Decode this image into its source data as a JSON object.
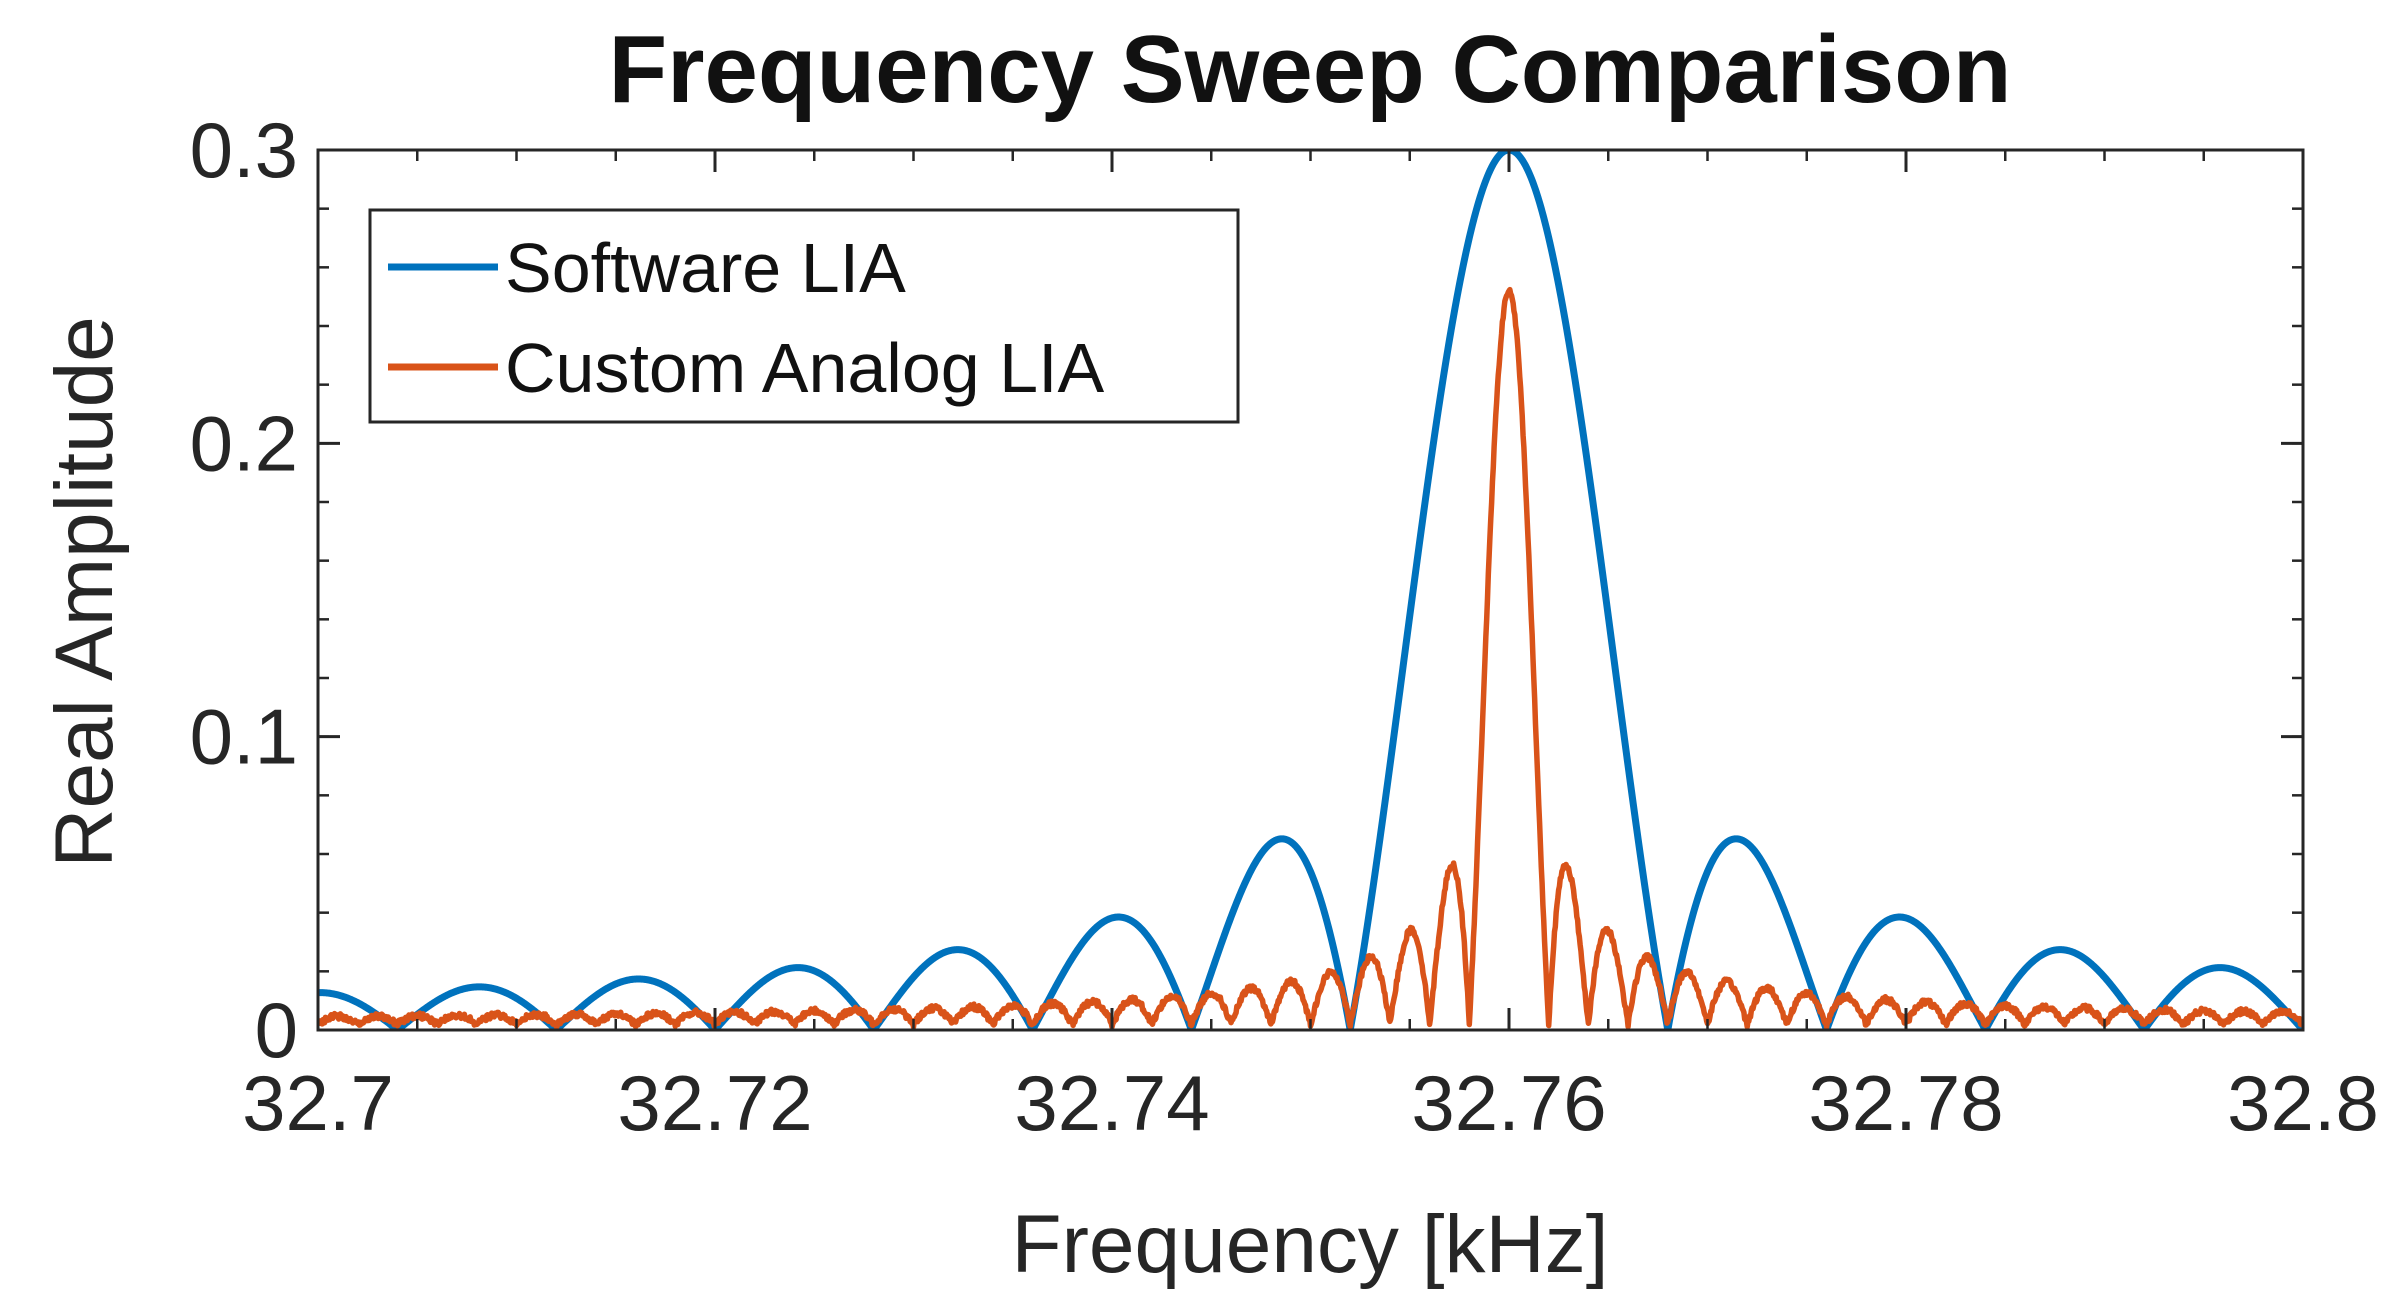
{
  "chart_data": {
    "type": "line",
    "title": "Frequency Sweep Comparison",
    "xlabel": "Frequency [kHz]",
    "ylabel": "Real Amplitude",
    "xlim": [
      32.7,
      32.8
    ],
    "ylim": [
      0,
      0.3
    ],
    "x_ticks": [
      32.7,
      32.72,
      32.74,
      32.76,
      32.78,
      32.8
    ],
    "x_tick_labels": [
      "32.7",
      "32.72",
      "32.74",
      "32.76",
      "32.78",
      "32.8"
    ],
    "y_ticks": [
      0,
      0.1,
      0.2,
      0.3
    ],
    "y_tick_labels": [
      "0",
      "0.1",
      "0.2",
      "0.3"
    ],
    "grid": false,
    "legend_position": "top-left",
    "series": [
      {
        "name": "Software LIA",
        "color": "#0072BD",
        "model": "sinc",
        "center": 32.76,
        "peak": 0.3,
        "zero_spacing": 0.008
      },
      {
        "name": "Custom Analog LIA",
        "color": "#D95319",
        "model": "sinc",
        "center": 32.76,
        "peak": 0.25,
        "zero_spacing": 0.002,
        "noise_floor": 0.002
      }
    ]
  }
}
